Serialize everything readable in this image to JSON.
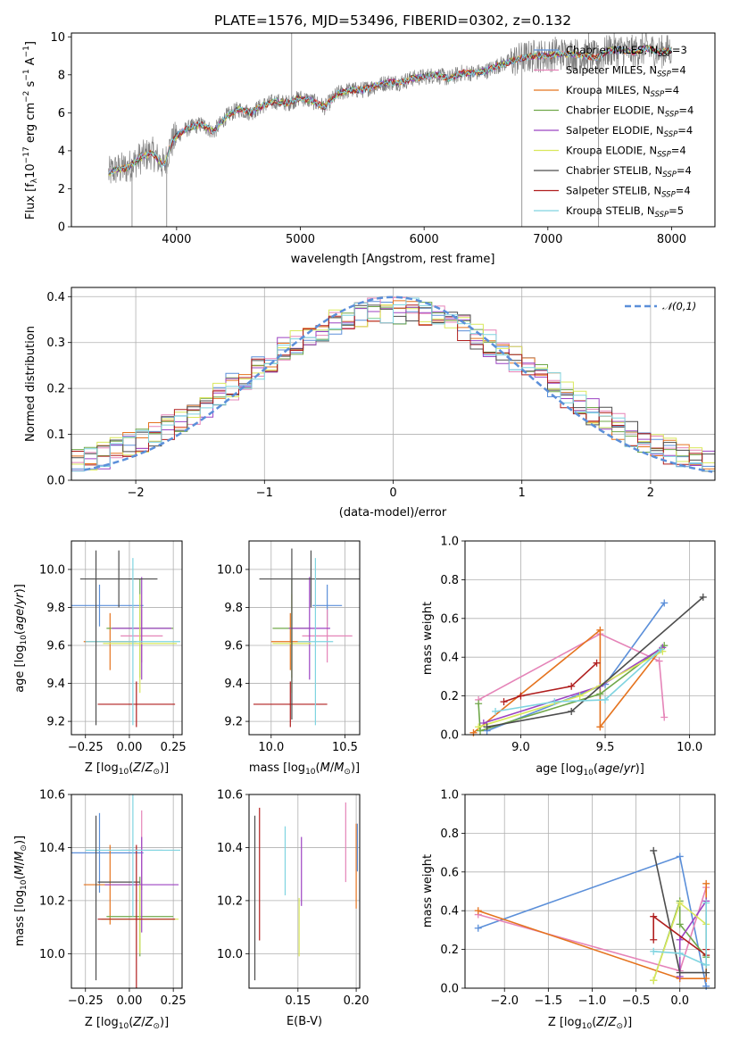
{
  "chart_data": [
    {
      "id": "spectrum",
      "type": "line",
      "title": "PLATE=1576, MJD=53496, FIBERID=0302, z=0.132",
      "xlabel": "wavelength [Angstrom, rest frame]",
      "ylabel": "Flux [f_λ10^-17 erg cm^-2 s^-1 A^-1]",
      "xlim": [
        3150,
        8350
      ],
      "ylim": [
        0,
        10.2
      ],
      "xticks": [
        4000,
        5000,
        6000,
        7000,
        8000
      ],
      "yticks": [
        0,
        2,
        4,
        6,
        8,
        10
      ],
      "grid": false,
      "legend_position": "right",
      "data_color": "#808080",
      "data_points": [
        [
          3450,
          2.8
        ],
        [
          3500,
          3.0
        ],
        [
          3600,
          3.1
        ],
        [
          3700,
          3.6
        ],
        [
          3800,
          3.9
        ],
        [
          3900,
          3.2
        ],
        [
          3950,
          4.3
        ],
        [
          4000,
          4.8
        ],
        [
          4100,
          5.2
        ],
        [
          4200,
          5.4
        ],
        [
          4300,
          5.0
        ],
        [
          4400,
          5.8
        ],
        [
          4500,
          6.2
        ],
        [
          4600,
          6.0
        ],
        [
          4700,
          6.4
        ],
        [
          4800,
          6.6
        ],
        [
          4900,
          6.5
        ],
        [
          5000,
          6.8
        ],
        [
          5100,
          6.6
        ],
        [
          5200,
          6.3
        ],
        [
          5300,
          7.0
        ],
        [
          5400,
          7.2
        ],
        [
          5500,
          7.2
        ],
        [
          5600,
          7.4
        ],
        [
          5700,
          7.6
        ],
        [
          5800,
          7.6
        ],
        [
          5900,
          7.8
        ],
        [
          6000,
          7.9
        ],
        [
          6100,
          8.0
        ],
        [
          6200,
          7.8
        ],
        [
          6300,
          8.1
        ],
        [
          6400,
          8.1
        ],
        [
          6500,
          8.2
        ],
        [
          6600,
          8.5
        ],
        [
          6700,
          8.7
        ],
        [
          6800,
          8.9
        ],
        [
          6900,
          9.0
        ],
        [
          7000,
          9.0
        ],
        [
          7100,
          9.1
        ],
        [
          7200,
          9.1
        ],
        [
          7300,
          9.0
        ],
        [
          7400,
          8.9
        ],
        [
          7500,
          9.3
        ],
        [
          7600,
          9.3
        ],
        [
          7700,
          9.2
        ],
        [
          7800,
          9.4
        ],
        [
          7900,
          9.2
        ],
        [
          8000,
          9.3
        ]
      ],
      "series": [
        {
          "name": "Chabrier MILES, N_SSP=3",
          "label_main": "Chabrier MILES, N",
          "label_sub": "SSP",
          "label_tail": "=3",
          "color": "#5b8fd9"
        },
        {
          "name": "Salpeter MILES, N_SSP=4",
          "label_main": "Salpeter MILES, N",
          "label_sub": "SSP",
          "label_tail": "=4",
          "color": "#e584b8"
        },
        {
          "name": "Kroupa MILES, N_SSP=4",
          "label_main": "Kroupa MILES, N",
          "label_sub": "SSP",
          "label_tail": "=4",
          "color": "#e5731e"
        },
        {
          "name": "Chabrier ELODIE, N_SSP=4",
          "label_main": "Chabrier ELODIE, N",
          "label_sub": "SSP",
          "label_tail": "=4",
          "color": "#70a84a"
        },
        {
          "name": "Salpeter ELODIE, N_SSP=4",
          "label_main": "Salpeter ELODIE, N",
          "label_sub": "SSP",
          "label_tail": "=4",
          "color": "#9c43c2"
        },
        {
          "name": "Kroupa ELODIE, N_SSP=4",
          "label_main": "Kroupa ELODIE, N",
          "label_sub": "SSP",
          "label_tail": "=4",
          "color": "#d9e85c"
        },
        {
          "name": "Chabrier STELIB, N_SSP=4",
          "label_main": "Chabrier STELIB, N",
          "label_sub": "SSP",
          "label_tail": "=4",
          "color": "#4d4d4d"
        },
        {
          "name": "Salpeter STELIB, N_SSP=4",
          "label_main": "Salpeter STELIB, N",
          "label_sub": "SSP",
          "label_tail": "=4",
          "color": "#b01e1e"
        },
        {
          "name": "Kroupa STELIB, N_SSP=5",
          "label_main": "Kroupa STELIB, N",
          "label_sub": "SSP",
          "label_tail": "=5",
          "color": "#7fd4e0"
        }
      ]
    },
    {
      "id": "residuals",
      "type": "step",
      "xlabel": "(data-model)/error",
      "ylabel": "Normed distribution",
      "xlim": [
        -2.5,
        2.5
      ],
      "ylim": [
        0,
        0.42
      ],
      "xticks": [
        -2,
        -1,
        0,
        1,
        2
      ],
      "yticks": [
        0.0,
        0.1,
        0.2,
        0.3,
        0.4
      ],
      "grid": true,
      "reference_label": "𝒩(0,1)",
      "reference_color": "#5b8fd9",
      "legend_position": "top-right",
      "bin_width": 0.1
    },
    {
      "id": "age_vs_Z",
      "type": "errorbar",
      "xlabel": "Z [log10(Z/Z⊙)]",
      "ylabel": "age [log10(age/yr)]",
      "xlim": [
        -0.33,
        0.3
      ],
      "ylim": [
        9.13,
        10.15
      ],
      "xticks": [
        -0.25,
        0.0,
        0.25
      ],
      "yticks": [
        9.2,
        9.4,
        9.6,
        9.8,
        10.0
      ],
      "grid": true,
      "points": [
        {
          "x": -0.17,
          "y": 9.81,
          "xerr": 0.25,
          "yerr": 0.11,
          "color": "#5b8fd9"
        },
        {
          "x": 0.07,
          "y": 9.65,
          "xerr": 0.12,
          "yerr": 0.14,
          "color": "#e584b8"
        },
        {
          "x": -0.11,
          "y": 9.62,
          "xerr": 0.15,
          "yerr": 0.15,
          "color": "#e5731e"
        },
        {
          "x": 0.06,
          "y": 9.69,
          "xerr": 0.19,
          "yerr": 0.26,
          "color": "#70a84a"
        },
        {
          "x": 0.07,
          "y": 9.69,
          "xerr": 0.17,
          "yerr": 0.27,
          "color": "#9c43c2"
        },
        {
          "x": 0.06,
          "y": 9.61,
          "xerr": 0.21,
          "yerr": 0.26,
          "color": "#d9e85c"
        },
        {
          "x": -0.06,
          "y": 9.95,
          "xerr": 0.22,
          "yerr": 0.15,
          "color": "#4d4d4d"
        },
        {
          "x": 0.04,
          "y": 9.29,
          "xerr": 0.22,
          "yerr": 0.12,
          "color": "#b01e1e"
        },
        {
          "x": 0.02,
          "y": 9.62,
          "xerr": 0.27,
          "yerr": 0.44,
          "color": "#7fd4e0"
        },
        {
          "x": -0.19,
          "y": 9.64,
          "xerr": 0.0,
          "yerr": 0.46,
          "color": "#4d4d4d"
        }
      ]
    },
    {
      "id": "age_vs_mass",
      "type": "errorbar",
      "xlabel": "mass [log10(M/M⊙)]",
      "ylabel": "",
      "xlim": [
        9.85,
        10.6
      ],
      "ylim": [
        9.13,
        10.15
      ],
      "xticks": [
        10.0,
        10.5
      ],
      "yticks": [
        9.2,
        9.4,
        9.6,
        9.8,
        10.0
      ],
      "grid": true,
      "points": [
        {
          "x": 10.38,
          "y": 9.81,
          "xerr": 0.1,
          "yerr": 0.11,
          "color": "#5b8fd9"
        },
        {
          "x": 10.38,
          "y": 9.65,
          "xerr": 0.17,
          "yerr": 0.14,
          "color": "#e584b8"
        },
        {
          "x": 10.13,
          "y": 9.62,
          "xerr": 0.13,
          "yerr": 0.15,
          "color": "#e5731e"
        },
        {
          "x": 10.14,
          "y": 9.69,
          "xerr": 0.13,
          "yerr": 0.26,
          "color": "#70a84a"
        },
        {
          "x": 10.26,
          "y": 9.69,
          "xerr": 0.14,
          "yerr": 0.27,
          "color": "#9c43c2"
        },
        {
          "x": 10.14,
          "y": 9.61,
          "xerr": 0.13,
          "yerr": 0.26,
          "color": "#d9e85c"
        },
        {
          "x": 10.27,
          "y": 9.95,
          "xerr": 0.35,
          "yerr": 0.15,
          "color": "#4d4d4d"
        },
        {
          "x": 10.13,
          "y": 9.29,
          "xerr": 0.25,
          "yerr": 0.12,
          "color": "#b01e1e"
        },
        {
          "x": 10.3,
          "y": 9.62,
          "xerr": 0.12,
          "yerr": 0.44,
          "color": "#7fd4e0"
        },
        {
          "x": 10.14,
          "y": 9.66,
          "xerr": 0.0,
          "yerr": 0.45,
          "color": "#4d4d4d"
        }
      ]
    },
    {
      "id": "weight_vs_age",
      "type": "line",
      "xlabel": "age [log10(age/yr)]",
      "ylabel": "mass weight",
      "xlim": [
        8.67,
        10.15
      ],
      "ylim": [
        0,
        1
      ],
      "xticks": [
        9.0,
        9.5,
        10.0
      ],
      "yticks": [
        0.0,
        0.2,
        0.4,
        0.6,
        0.8,
        1.0
      ],
      "grid": true,
      "series": [
        {
          "color": "#5b8fd9",
          "points": [
            [
              8.8,
              0.02
            ],
            [
              9.5,
              0.26
            ],
            [
              9.85,
              0.68
            ]
          ]
        },
        {
          "color": "#e584b8",
          "points": [
            [
              8.75,
              0.18
            ],
            [
              9.47,
              0.52
            ],
            [
              9.82,
              0.38
            ],
            [
              9.85,
              0.09
            ]
          ]
        },
        {
          "color": "#e5731e",
          "points": [
            [
              8.72,
              0.01
            ],
            [
              9.47,
              0.54
            ],
            [
              9.47,
              0.04
            ],
            [
              9.83,
              0.44
            ]
          ]
        },
        {
          "color": "#70a84a",
          "points": [
            [
              8.75,
              0.16
            ],
            [
              8.76,
              0.02
            ],
            [
              9.47,
              0.21
            ],
            [
              9.85,
              0.46
            ]
          ]
        },
        {
          "color": "#9c43c2",
          "points": [
            [
              8.78,
              0.06
            ],
            [
              9.47,
              0.25
            ],
            [
              9.84,
              0.45
            ]
          ]
        },
        {
          "color": "#d9e85c",
          "points": [
            [
              8.75,
              0.04
            ],
            [
              9.35,
              0.2
            ],
            [
              9.84,
              0.43
            ]
          ]
        },
        {
          "color": "#4d4d4d",
          "points": [
            [
              8.8,
              0.04
            ],
            [
              9.3,
              0.12
            ],
            [
              10.08,
              0.71
            ]
          ]
        },
        {
          "color": "#b01e1e",
          "points": [
            [
              8.9,
              0.17
            ],
            [
              9.0,
              0.2
            ],
            [
              9.3,
              0.25
            ],
            [
              9.45,
              0.37
            ]
          ]
        },
        {
          "color": "#7fd4e0",
          "points": [
            [
              8.85,
              0.12
            ],
            [
              9.2,
              0.17
            ],
            [
              9.5,
              0.18
            ],
            [
              9.83,
              0.44
            ]
          ]
        }
      ]
    },
    {
      "id": "mass_vs_Z",
      "type": "errorbar",
      "xlabel": "Z [log10(Z/Z⊙)]",
      "ylabel": "mass [log10(M/M⊙)]",
      "xlim": [
        -0.33,
        0.3
      ],
      "ylim": [
        9.87,
        10.6
      ],
      "xticks": [
        -0.25,
        0.0,
        0.25
      ],
      "yticks": [
        10.0,
        10.2,
        10.4,
        10.6
      ],
      "grid": true,
      "points": [
        {
          "x": -0.17,
          "y": 10.38,
          "xerr": 0.25,
          "yerr": 0.15,
          "color": "#5b8fd9"
        },
        {
          "x": 0.07,
          "y": 10.39,
          "xerr": 0.12,
          "yerr": 0.15,
          "color": "#e584b8"
        },
        {
          "x": -0.11,
          "y": 10.26,
          "xerr": 0.15,
          "yerr": 0.15,
          "color": "#e5731e"
        },
        {
          "x": 0.06,
          "y": 10.14,
          "xerr": 0.19,
          "yerr": 0.15,
          "color": "#70a84a"
        },
        {
          "x": 0.07,
          "y": 10.26,
          "xerr": 0.21,
          "yerr": 0.18,
          "color": "#9c43c2"
        },
        {
          "x": 0.06,
          "y": 10.13,
          "xerr": 0.22,
          "yerr": 0.13,
          "color": "#d9e85c"
        },
        {
          "x": -0.06,
          "y": 10.27,
          "xerr": 0.12,
          "yerr": 0.0,
          "color": "#4d4d4d"
        },
        {
          "x": 0.04,
          "y": 10.13,
          "xerr": 0.22,
          "yerr": 0.28,
          "color": "#b01e1e"
        },
        {
          "x": 0.02,
          "y": 10.39,
          "xerr": 0.27,
          "yerr": 0.25,
          "color": "#7fd4e0"
        },
        {
          "x": -0.19,
          "y": 10.21,
          "xerr": 0.0,
          "yerr": 0.31,
          "color": "#4d4d4d"
        }
      ]
    },
    {
      "id": "mass_vs_ebv",
      "type": "errorbar",
      "xlabel": "E(B-V)",
      "ylabel": "",
      "xlim": [
        0.108,
        0.203
      ],
      "ylim": [
        9.87,
        10.6
      ],
      "xticks": [
        0.1,
        0.15,
        0.2
      ],
      "yticks": [
        10.0,
        10.2,
        10.4,
        10.6
      ],
      "grid": true,
      "points": [
        {
          "x": 0.113,
          "y": 10.21,
          "xerr": 0.0,
          "yerr": 0.31,
          "color": "#4d4d4d"
        },
        {
          "x": 0.117,
          "y": 10.3,
          "xerr": 0.0,
          "yerr": 0.25,
          "color": "#b01e1e"
        },
        {
          "x": 0.139,
          "y": 10.35,
          "xerr": 0.0,
          "yerr": 0.13,
          "color": "#7fd4e0"
        },
        {
          "x": 0.151,
          "y": 10.1,
          "xerr": 0.0,
          "yerr": 0.11,
          "color": "#d9e85c"
        },
        {
          "x": 0.153,
          "y": 10.31,
          "xerr": 0.0,
          "yerr": 0.13,
          "color": "#9c43c2"
        },
        {
          "x": 0.191,
          "y": 10.42,
          "xerr": 0.0,
          "yerr": 0.15,
          "color": "#e584b8"
        },
        {
          "x": 0.2,
          "y": 10.33,
          "xerr": 0.0,
          "yerr": 0.16,
          "color": "#e5731e"
        },
        {
          "x": 0.201,
          "y": 10.4,
          "xerr": 0.0,
          "yerr": 0.09,
          "color": "#5b8fd9"
        }
      ]
    },
    {
      "id": "weight_vs_Z",
      "type": "line",
      "xlabel": "Z [log10(Z/Z⊙)]",
      "ylabel": "mass weight",
      "xlim": [
        -2.45,
        0.4
      ],
      "ylim": [
        0,
        1
      ],
      "xticks": [
        -2.0,
        -1.5,
        -1.0,
        -0.5,
        0.0
      ],
      "yticks": [
        0.0,
        0.2,
        0.4,
        0.6,
        0.8,
        1.0
      ],
      "grid": true,
      "series": [
        {
          "color": "#5b8fd9",
          "points": [
            [
              -2.3,
              0.31
            ],
            [
              0.0,
              0.68
            ],
            [
              0.3,
              0.01
            ]
          ]
        },
        {
          "color": "#e584b8",
          "points": [
            [
              -2.3,
              0.38
            ],
            [
              0.0,
              0.09
            ],
            [
              0.3,
              0.52
            ]
          ]
        },
        {
          "color": "#e5731e",
          "points": [
            [
              -2.3,
              0.4
            ],
            [
              0.0,
              0.05
            ],
            [
              0.3,
              0.05
            ],
            [
              0.3,
              0.54
            ]
          ]
        },
        {
          "color": "#70a84a",
          "points": [
            [
              -0.3,
              0.04
            ],
            [
              0.0,
              0.45
            ],
            [
              0.0,
              0.33
            ],
            [
              0.3,
              0.16
            ]
          ]
        },
        {
          "color": "#9c43c2",
          "points": [
            [
              0.0,
              0.06
            ],
            [
              0.0,
              0.25
            ],
            [
              0.3,
              0.45
            ]
          ]
        },
        {
          "color": "#d9e85c",
          "points": [
            [
              -0.3,
              0.04
            ],
            [
              0.0,
              0.44
            ],
            [
              0.3,
              0.33
            ]
          ]
        },
        {
          "color": "#4d4d4d",
          "points": [
            [
              -0.3,
              0.71
            ],
            [
              0.0,
              0.08
            ],
            [
              0.3,
              0.08
            ]
          ]
        },
        {
          "color": "#b01e1e",
          "points": [
            [
              -0.3,
              0.25
            ],
            [
              -0.3,
              0.37
            ],
            [
              0.3,
              0.17
            ],
            [
              0.3,
              0.2
            ]
          ]
        },
        {
          "color": "#7fd4e0",
          "points": [
            [
              -0.3,
              0.19
            ],
            [
              0.0,
              0.18
            ],
            [
              0.3,
              0.12
            ],
            [
              0.3,
              0.44
            ]
          ]
        }
      ]
    }
  ]
}
